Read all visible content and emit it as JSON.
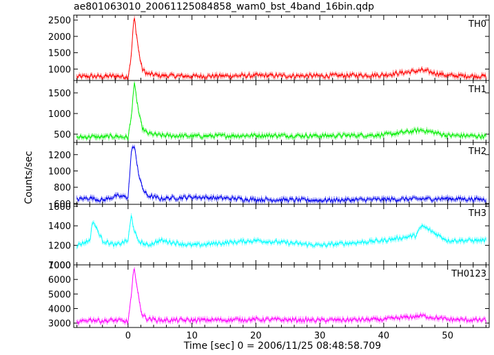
{
  "title": "ae801063010_20061125084858_wam0_bst_4band_16bin.qdp",
  "chart_data": {
    "type": "line",
    "title": "ae801063010_20061125084858_wam0_bst_4band_16bin.qdp",
    "xlabel": "Time [sec] 0 = 2006/11/25 08:48:58.709",
    "ylabel": "Counts/sec",
    "xlim": [
      -8.5,
      56.5
    ],
    "x_ticks": [
      0,
      10,
      20,
      30,
      40,
      50
    ],
    "grid": false,
    "panels": [
      {
        "name": "TH0",
        "color": "#ff0000",
        "ylim": [
          650,
          2650
        ],
        "y_ticks": [
          1000,
          1500,
          2000,
          2500
        ],
        "series": [
          {
            "name": "TH0",
            "x": [
              -8,
              -6,
              -4,
              -2,
              0,
              0.5,
              0.8,
              1.0,
              1.3,
              1.7,
              2.2,
              3,
              5,
              10,
              20,
              30,
              40,
              46,
              50,
              56
            ],
            "y": [
              760,
              780,
              770,
              790,
              760,
              1400,
              2300,
              2550,
              2100,
              1500,
              1000,
              850,
              800,
              780,
              800,
              790,
              820,
              960,
              800,
              780
            ]
          }
        ]
      },
      {
        "name": "TH1",
        "color": "#00ee00",
        "ylim": [
          300,
          1800
        ],
        "y_ticks": [
          500,
          1000,
          1500
        ],
        "series": [
          {
            "name": "TH1",
            "x": [
              -8,
              -6,
              -4,
              -2,
              0,
              0.5,
              0.8,
              1.0,
              1.3,
              1.7,
              2.2,
              3,
              5,
              10,
              20,
              30,
              40,
              46,
              50,
              56
            ],
            "y": [
              420,
              440,
              430,
              450,
              420,
              900,
              1500,
              1700,
              1400,
              1000,
              650,
              520,
              470,
              450,
              470,
              460,
              480,
              600,
              470,
              450
            ]
          }
        ]
      },
      {
        "name": "TH2",
        "color": "#0000ee",
        "ylim": [
          590,
          1350
        ],
        "y_ticks": [
          600,
          800,
          1000,
          1200
        ],
        "series": [
          {
            "name": "TH2",
            "x": [
              -8,
              -6,
              -4,
              -2,
              0,
              0.3,
              0.6,
              1.0,
              1.3,
              1.8,
              2.5,
              3,
              5,
              10,
              20,
              30,
              40,
              50,
              56
            ],
            "y": [
              650,
              670,
              640,
              690,
              680,
              1000,
              1300,
              1280,
              1150,
              900,
              750,
              700,
              660,
              680,
              650,
              640,
              650,
              660,
              650
            ]
          }
        ]
      },
      {
        "name": "TH3",
        "color": "#00ffff",
        "ylim": [
          1000,
          1620
        ],
        "y_ticks": [
          1000,
          1200,
          1400,
          1600
        ],
        "series": [
          {
            "name": "TH3",
            "x": [
              -8,
              -6,
              -5.5,
              -4,
              -2,
              0,
              0.5,
              1.0,
              1.5,
              3,
              5,
              10,
              20,
              30,
              40,
              45,
              46,
              50,
              56
            ],
            "y": [
              1200,
              1250,
              1450,
              1250,
              1200,
              1250,
              1500,
              1350,
              1250,
              1200,
              1250,
              1200,
              1250,
              1200,
              1250,
              1300,
              1400,
              1250,
              1250
            ]
          }
        ]
      },
      {
        "name": "TH0123",
        "color": "#ff00ff",
        "ylim": [
          2700,
          7000
        ],
        "y_ticks": [
          3000,
          4000,
          5000,
          6000,
          7000
        ],
        "series": [
          {
            "name": "TH0123",
            "x": [
              -8,
              -6,
              -4,
              -2,
              0,
              0.5,
              0.8,
              1.0,
              1.3,
              1.7,
              2.2,
              3,
              5,
              10,
              20,
              30,
              40,
              46,
              50,
              56
            ],
            "y": [
              3000,
              3250,
              3150,
              3200,
              3100,
              4800,
              6300,
              6850,
              5800,
              4600,
              3600,
              3300,
              3200,
              3200,
              3250,
              3200,
              3250,
              3500,
              3250,
              3200
            ]
          }
        ]
      }
    ]
  }
}
